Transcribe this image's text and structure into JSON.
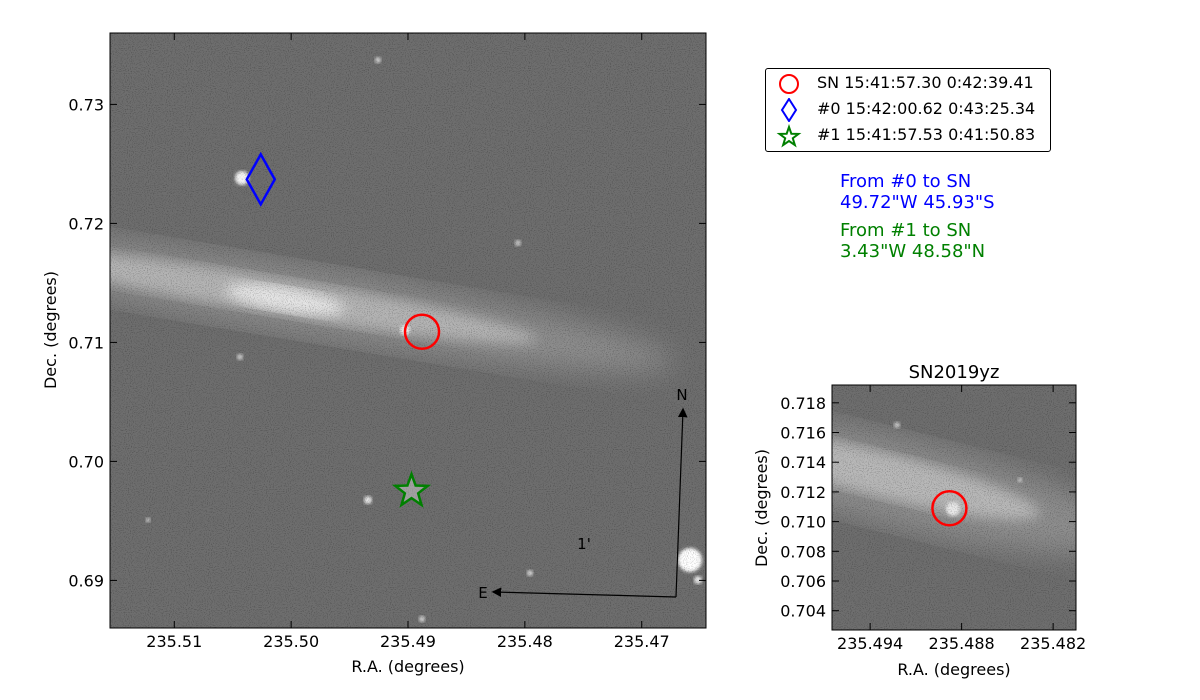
{
  "colors": {
    "sn": "#ff0000",
    "host0": "#0000ff",
    "host1": "#008000",
    "text": "#000000"
  },
  "main_panel": {
    "xlabel": "R.A. (degrees)",
    "ylabel": "Dec. (degrees)",
    "x_ticks": [
      "235.51",
      "235.50",
      "235.49",
      "235.48",
      "235.47"
    ],
    "y_ticks": [
      "0.69",
      "0.70",
      "0.71",
      "0.72",
      "0.73"
    ],
    "compass": {
      "north": "N",
      "east": "E",
      "scale": "1'"
    }
  },
  "inset_panel": {
    "title": "SN2019yz",
    "xlabel": "R.A. (degrees)",
    "ylabel": "Dec. (degrees)",
    "x_ticks": [
      "235.494",
      "235.488",
      "235.482"
    ],
    "y_ticks": [
      "0.704",
      "0.706",
      "0.708",
      "0.710",
      "0.712",
      "0.714",
      "0.716",
      "0.718"
    ]
  },
  "legend": [
    {
      "marker": "circle-icon",
      "text": "SN 15:41:57.30 0:42:39.41"
    },
    {
      "marker": "diamond-icon",
      "text": "#0 15:42:00.62 0:43:25.34"
    },
    {
      "marker": "star-icon",
      "text": "#1 15:41:57.53 0:41:50.83"
    }
  ],
  "offsets": {
    "host0_line1": "From #0 to SN",
    "host0_line2": "49.72\"W 45.93\"S",
    "host1_line1": "From #1 to SN",
    "host1_line2": "3.43\"W 48.58\"N"
  },
  "chart_data": [
    {
      "type": "scatter",
      "title": "",
      "xlabel": "R.A. (degrees)",
      "ylabel": "Dec. (degrees)",
      "xlim": [
        235.5155,
        235.4645
      ],
      "ylim": [
        0.686,
        0.736
      ],
      "x_inverted": true,
      "background": "grayscale sky image",
      "series": [
        {
          "name": "SN 15:41:57.30 0:42:39.41",
          "marker": "circle",
          "color": "#ff0000",
          "points": [
            {
              "x": 235.4888,
              "y": 0.7109
            }
          ]
        },
        {
          "name": "#0 15:42:00.62 0:43:25.34",
          "marker": "diamond",
          "color": "#0000ff",
          "points": [
            {
              "x": 235.5026,
              "y": 0.7237
            }
          ]
        },
        {
          "name": "#1 15:41:57.53 0:41:50.83",
          "marker": "star",
          "color": "#008000",
          "points": [
            {
              "x": 235.4897,
              "y": 0.6975
            }
          ]
        }
      ],
      "annotations": [
        "N",
        "E",
        "1'"
      ]
    },
    {
      "type": "scatter",
      "title": "SN2019yz",
      "xlabel": "R.A. (degrees)",
      "ylabel": "Dec. (degrees)",
      "xlim": [
        235.4965,
        235.4805
      ],
      "ylim": [
        0.7027,
        0.7192
      ],
      "x_inverted": true,
      "background": "grayscale sky image",
      "series": [
        {
          "name": "SN 15:41:57.30 0:42:39.41",
          "marker": "circle",
          "color": "#ff0000",
          "points": [
            {
              "x": 235.4888,
              "y": 0.7109
            }
          ]
        }
      ]
    }
  ]
}
